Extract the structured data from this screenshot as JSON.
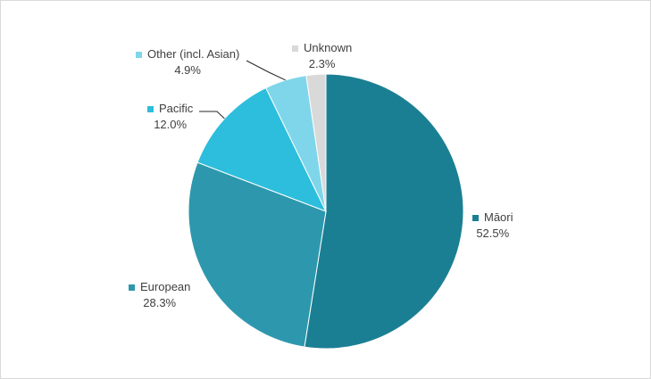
{
  "chart_data": {
    "type": "pie",
    "title": "",
    "slices": [
      {
        "label": "Māori",
        "value": 52.5,
        "value_label": "52.5%",
        "color": "#1b7f93"
      },
      {
        "label": "European",
        "value": 28.3,
        "value_label": "28.3%",
        "color": "#2d98ad"
      },
      {
        "label": "Pacific",
        "value": 12.0,
        "value_label": "12.0%",
        "color": "#2cbedc"
      },
      {
        "label": "Other (incl. Asian)",
        "value": 4.9,
        "value_label": "4.9%",
        "color": "#7fd6ea"
      },
      {
        "label": "Unknown",
        "value": 2.3,
        "value_label": "2.3%",
        "color": "#d9d9d9"
      }
    ],
    "legend": "none"
  }
}
